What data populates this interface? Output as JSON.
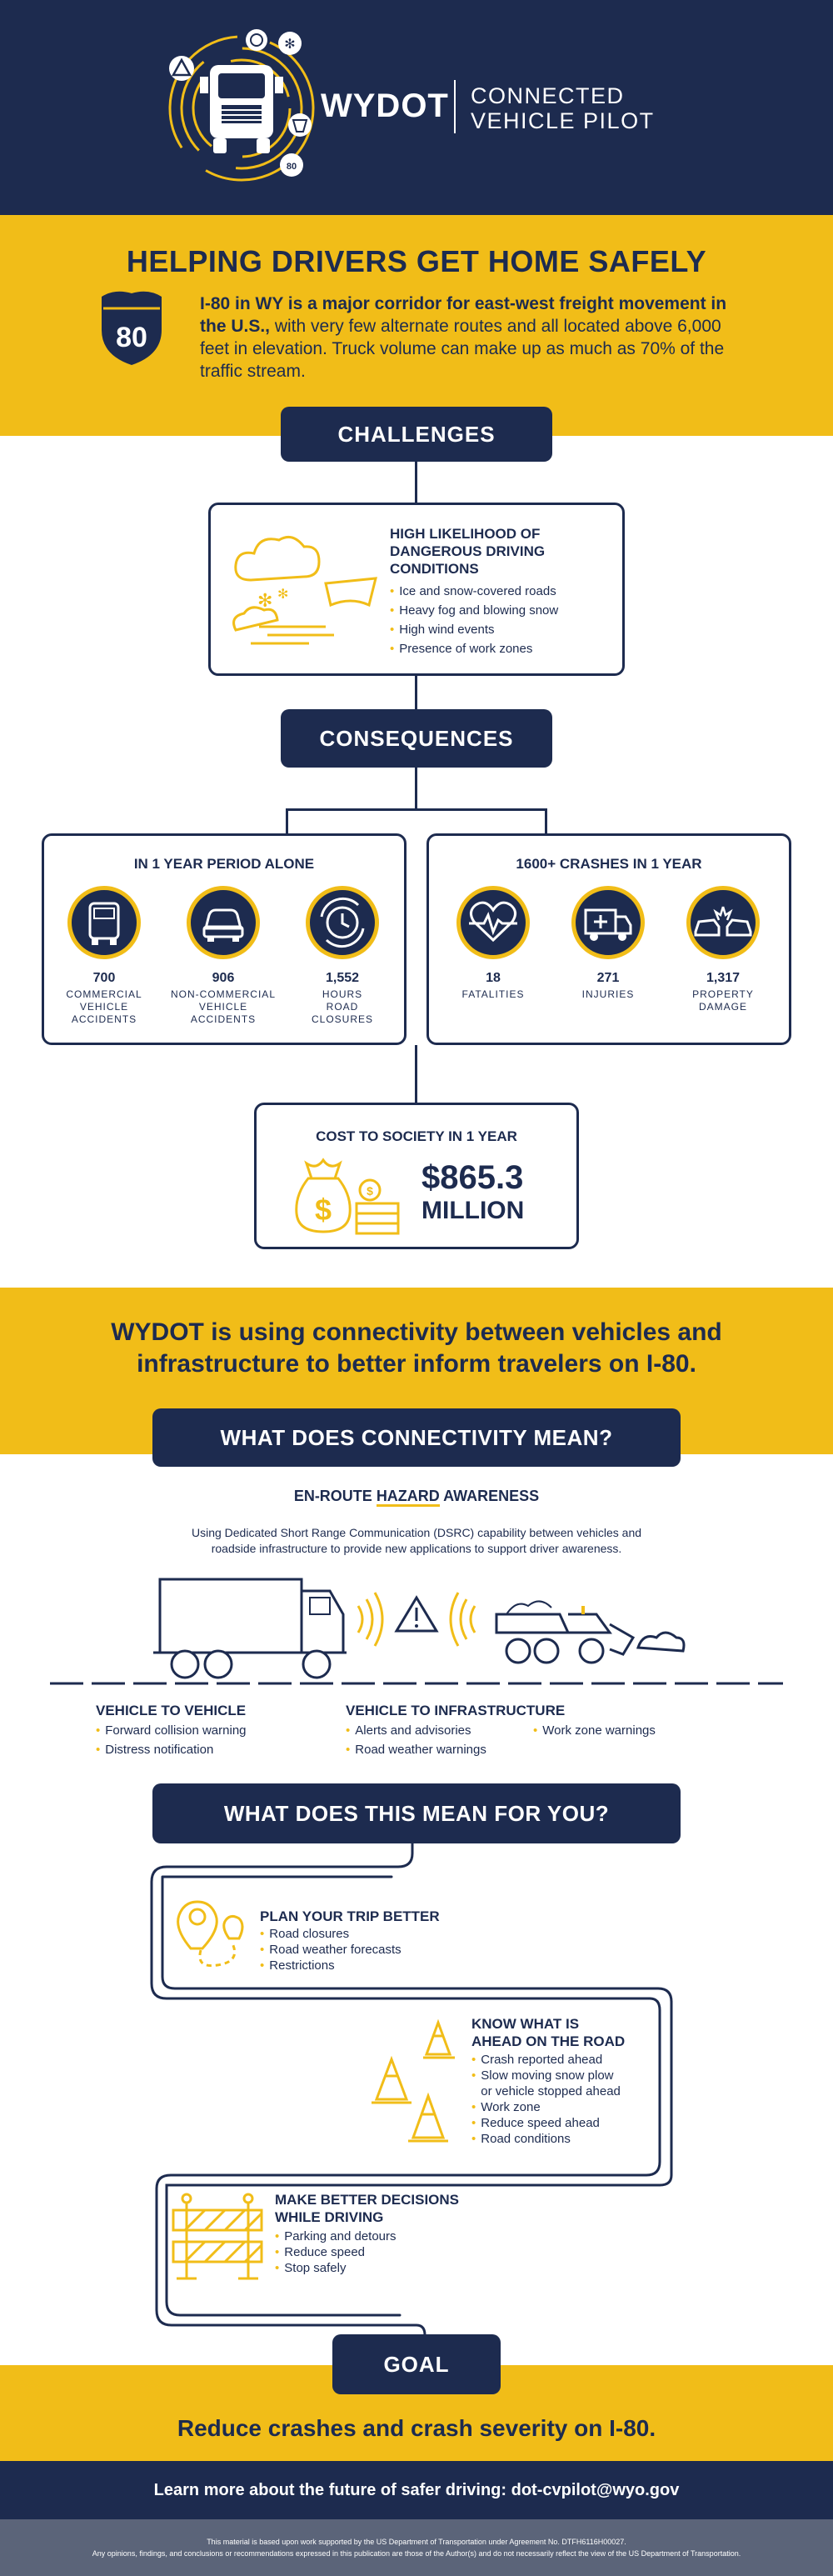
{
  "header": {
    "brand": "WYDOT",
    "subtitle_line1": "CONNECTED",
    "subtitle_line2": "VEHICLE PILOT",
    "logo_badge": "80"
  },
  "intro": {
    "title": "HELPING DRIVERS GET HOME SAFELY",
    "shield_number": "80",
    "text_bold": "I-80 in WY is a major corridor for east-west freight movement in the U.S.,",
    "text_rest": " with very few alternate routes and all located above 6,000 feet in elevation. Truck volume can make up as much as 70% of the traffic stream."
  },
  "challenges": {
    "header": "CHALLENGES",
    "title": "HIGH LIKELIHOOD OF DANGEROUS DRIVING CONDITIONS",
    "items": [
      "Ice and snow-covered roads",
      "Heavy fog and blowing snow",
      "High wind events",
      "Presence of work zones"
    ]
  },
  "consequences": {
    "header": "CONSEQUENCES",
    "left": {
      "title": "IN 1 YEAR PERIOD ALONE",
      "stats": [
        {
          "icon": "truck-icon",
          "number": "700",
          "label": "COMMERCIAL VEHICLE ACCIDENTS"
        },
        {
          "icon": "car-icon",
          "number": "906",
          "label": "NON-COMMERCIAL VEHICLE ACCIDENTS"
        },
        {
          "icon": "clock-icon",
          "number": "1,552",
          "label": "HOURS ROAD CLOSURES"
        }
      ]
    },
    "right": {
      "title": "1600+ CRASHES IN 1 YEAR",
      "stats": [
        {
          "icon": "heartbeat-icon",
          "number": "18",
          "label": "FATALITIES"
        },
        {
          "icon": "ambulance-icon",
          "number": "271",
          "label": "INJURIES"
        },
        {
          "icon": "crash-icon",
          "number": "1,317",
          "label": "PROPERTY DAMAGE"
        }
      ]
    },
    "cost": {
      "title": "COST TO SOCIETY IN 1 YEAR",
      "amount": "$865.3",
      "unit": "MILLION"
    }
  },
  "wydot_statement": {
    "line1": "WYDOT is using connectivity between vehicles and",
    "line2": "infrastructure to better inform travelers on I-80."
  },
  "connectivity": {
    "header": "WHAT DOES CONNECTIVITY MEAN?",
    "subtitle_pre": "EN-ROUTE ",
    "subtitle_hl": "HAZARD",
    "subtitle_post": " AWARENESS",
    "description_line1": "Using Dedicated Short Range Communication (DSRC) capability between vehicles and",
    "description_line2": "roadside infrastructure to provide new applications to support driver awareness.",
    "v2v": {
      "title": "VEHICLE TO VEHICLE",
      "items": [
        "Forward collision warning",
        "Distress notification"
      ]
    },
    "v2i": {
      "title": "VEHICLE TO INFRASTRUCTURE",
      "items_col1": [
        "Alerts and advisories",
        "Road weather warnings"
      ],
      "items_col2": [
        "Work zone warnings"
      ]
    }
  },
  "for_you": {
    "header": "WHAT DOES THIS MEAN FOR YOU?",
    "plan": {
      "title": "PLAN YOUR TRIP BETTER",
      "items": [
        "Road closures",
        "Road weather forecasts",
        "Restrictions"
      ]
    },
    "know": {
      "title_line1": "KNOW WHAT IS",
      "title_line2": "AHEAD ON THE ROAD",
      "items": [
        "Crash reported ahead",
        "Slow moving snow plow",
        "or vehicle stopped ahead",
        "Work zone",
        "Reduce speed ahead",
        "Road conditions"
      ]
    },
    "decide": {
      "title_line1": "MAKE BETTER DECISIONS",
      "title_line2": "WHILE DRIVING",
      "items": [
        "Parking and detours",
        "Reduce speed",
        "Stop safely"
      ]
    }
  },
  "goal": {
    "header": "GOAL",
    "text": "Reduce crashes and crash severity on I-80."
  },
  "footer": {
    "learn_more": "Learn more about the future of safer driving: dot-cvpilot@wyo.gov",
    "disclaimer1": "This material is based upon work supported by the US Department of Transportation under Agreement No. DTFH6116H00027.",
    "disclaimer2": "Any opinions, findings, and conclusions or recommendations expressed in this publication are those of the Author(s) and do not necessarily reflect the view of the US Department of Transportation."
  },
  "colors": {
    "navy": "#1d2b4f",
    "gold": "#f1bd18",
    "slate": "#5b6479"
  }
}
